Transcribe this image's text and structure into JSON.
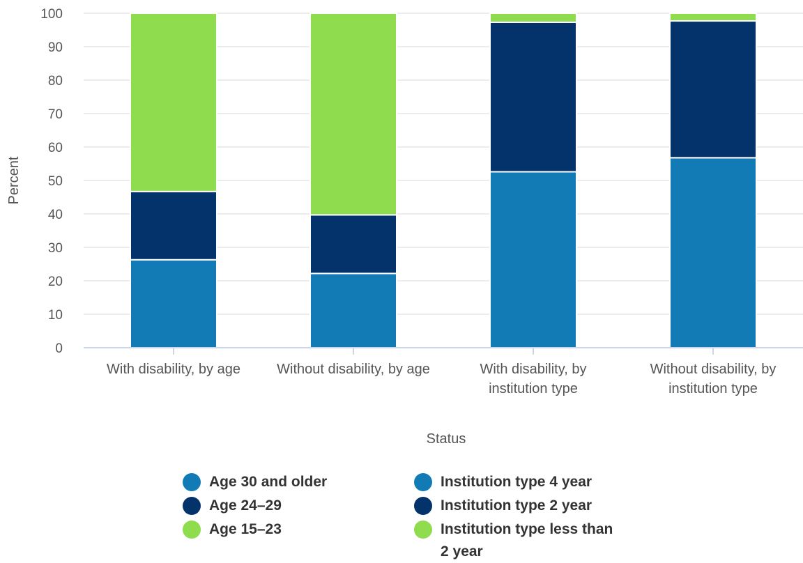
{
  "chart_data": {
    "type": "bar",
    "stacked": true,
    "categories": [
      "With disability, by age",
      "Without disability, by age",
      "With disability, by institution type",
      "Without disability, by institution type"
    ],
    "category_lines": [
      [
        "With disability, by age"
      ],
      [
        "Without disability, by age"
      ],
      [
        "With disability, by",
        "institution type"
      ],
      [
        "Without disability, by",
        "institution type"
      ]
    ],
    "series": [
      {
        "name": "Age 30 and older",
        "color": "#127bb6",
        "values": [
          26.3,
          22.2,
          null,
          null
        ]
      },
      {
        "name": "Age 24–29",
        "color": "#04326b",
        "values": [
          20.4,
          17.5,
          null,
          null
        ]
      },
      {
        "name": "Age 15–23",
        "color": "#8fdc4f",
        "values": [
          53.3,
          60.3,
          null,
          null
        ]
      },
      {
        "name": "Institution type 4 year",
        "color": "#127bb6",
        "values": [
          null,
          null,
          52.6,
          56.8
        ]
      },
      {
        "name": "Institution type 2 year",
        "color": "#04326b",
        "values": [
          null,
          null,
          44.7,
          40.9
        ]
      },
      {
        "name": "Institution type less than 2 year",
        "color": "#8fdc4f",
        "values": [
          null,
          null,
          2.7,
          2.3
        ]
      }
    ],
    "xlabel": "Status",
    "ylabel": "Percent",
    "ylim": [
      0,
      100
    ],
    "yticks": [
      0,
      10,
      20,
      30,
      40,
      50,
      60,
      70,
      80,
      90,
      100
    ],
    "grid": true,
    "legend_position": "bottom"
  },
  "legend": {
    "items": [
      {
        "label": "Age 30 and older",
        "color": "#127bb6"
      },
      {
        "label": "Age 24–29",
        "color": "#04326b"
      },
      {
        "label": "Age 15–23",
        "color": "#8fdc4f"
      },
      {
        "label": "Institution type 4 year",
        "color": "#127bb6"
      },
      {
        "label": "Institution type 2 year",
        "color": "#04326b"
      },
      {
        "label": "Institution type less than 2 year",
        "color": "#8fdc4f"
      }
    ]
  }
}
